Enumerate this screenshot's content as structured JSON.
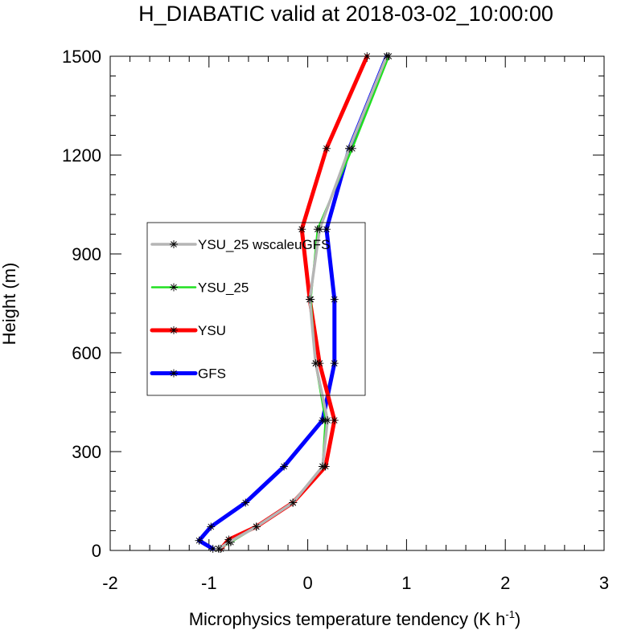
{
  "chart_data": {
    "type": "line",
    "title": "H_DIABATIC valid at 2018-03-02_10:00:00",
    "xlabel": "Microphysics temperature tendency (K h",
    "xlabel_sup": "-1",
    "xlabel_end": ")",
    "ylabel": "Height (m)",
    "xlim": [
      -2,
      3
    ],
    "ylim": [
      0,
      1500
    ],
    "x_ticks": [
      -2,
      -1,
      0,
      1,
      2,
      3
    ],
    "y_ticks": [
      0,
      300,
      600,
      900,
      1200,
      1500
    ],
    "x_tick_labels": [
      "-2",
      "-1",
      "0",
      "1",
      "2",
      "3"
    ],
    "y_tick_labels": [
      "0",
      "300",
      "600",
      "900",
      "1200",
      "1500"
    ],
    "grid": false,
    "legend_position": "center-left",
    "series": [
      {
        "name": "YSU_25 wscaleuGFS",
        "color": "#b5b5b5",
        "points": [
          [
            -0.9,
            5
          ],
          [
            -0.8,
            25
          ],
          [
            -0.52,
            72
          ],
          [
            -0.15,
            145
          ],
          [
            0.15,
            255
          ],
          [
            0.2,
            395
          ],
          [
            0.08,
            568
          ],
          [
            0.02,
            762
          ],
          [
            0.12,
            975
          ],
          [
            0.42,
            1220
          ],
          [
            0.8,
            1500
          ]
        ]
      },
      {
        "name": "YSU_25",
        "color": "#20e020",
        "points": [
          [
            -0.9,
            5
          ],
          [
            -0.78,
            25
          ],
          [
            -0.52,
            72
          ],
          [
            -0.15,
            145
          ],
          [
            0.15,
            255
          ],
          [
            0.18,
            395
          ],
          [
            0.08,
            568
          ],
          [
            0.03,
            762
          ],
          [
            0.1,
            975
          ],
          [
            0.45,
            1220
          ],
          [
            0.82,
            1500
          ]
        ]
      },
      {
        "name": "YSU",
        "color": "#ff0000",
        "points": [
          [
            -0.88,
            5
          ],
          [
            -0.8,
            33
          ],
          [
            -0.52,
            72
          ],
          [
            -0.15,
            145
          ],
          [
            0.18,
            255
          ],
          [
            0.27,
            395
          ],
          [
            0.12,
            568
          ],
          [
            0.02,
            762
          ],
          [
            -0.06,
            975
          ],
          [
            0.19,
            1220
          ],
          [
            0.6,
            1500
          ]
        ]
      },
      {
        "name": "GFS",
        "color": "#0000ff",
        "points": [
          [
            -0.96,
            5
          ],
          [
            -1.1,
            30
          ],
          [
            -0.98,
            72
          ],
          [
            -0.63,
            145
          ],
          [
            -0.24,
            255
          ],
          [
            0.15,
            395
          ],
          [
            0.27,
            568
          ],
          [
            0.27,
            762
          ],
          [
            0.19,
            975
          ],
          [
            0.42,
            1220
          ],
          [
            0.8,
            1500
          ]
        ]
      }
    ]
  }
}
